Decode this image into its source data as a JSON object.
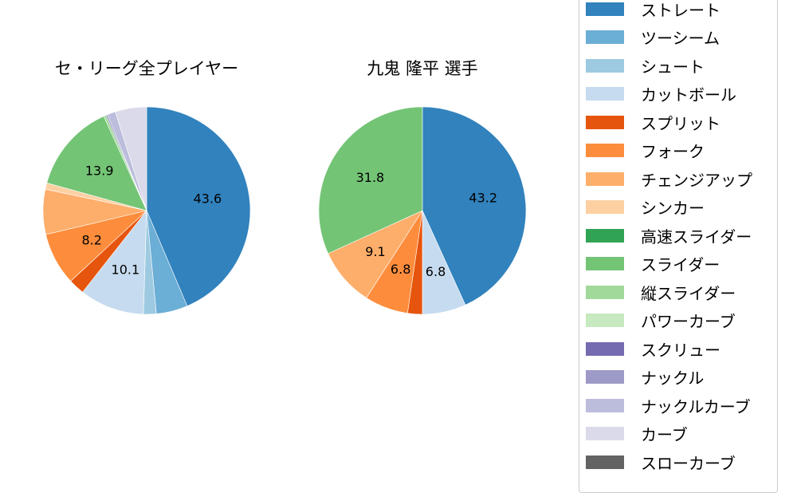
{
  "chart_data": [
    {
      "type": "pie",
      "title": "セ・リーグ全プレイヤー",
      "start_angle": 90,
      "direction": "clockwise",
      "slices": [
        {
          "label": "ストレート",
          "value": 43.6,
          "color": "#3182bd",
          "show_label": true
        },
        {
          "label": "ツーシーム",
          "value": 4.9,
          "color": "#6baed6",
          "show_label": false
        },
        {
          "label": "シュート",
          "value": 2.0,
          "color": "#9ecae1",
          "show_label": false
        },
        {
          "label": "カットボール",
          "value": 10.1,
          "color": "#c6dbef",
          "show_label": true
        },
        {
          "label": "スプリット",
          "value": 2.5,
          "color": "#e6550d",
          "show_label": false
        },
        {
          "label": "フォーク",
          "value": 8.2,
          "color": "#fd8d3c",
          "show_label": true
        },
        {
          "label": "チェンジアップ",
          "value": 7.0,
          "color": "#fdae6b",
          "show_label": false
        },
        {
          "label": "シンカー",
          "value": 1.0,
          "color": "#fdd0a2",
          "show_label": false
        },
        {
          "label": "スライダー",
          "value": 13.9,
          "color": "#74c476",
          "show_label": true
        },
        {
          "label": "縦スライダー",
          "value": 0.4,
          "color": "#a1d99b",
          "show_label": false
        },
        {
          "label": "スクリュー",
          "value": 0.2,
          "color": "#756bb1",
          "show_label": false
        },
        {
          "label": "ナックルカーブ",
          "value": 1.3,
          "color": "#bcbddc",
          "show_label": false
        },
        {
          "label": "カーブ",
          "value": 4.9,
          "color": "#dadaeb",
          "show_label": false
        }
      ]
    },
    {
      "type": "pie",
      "title": "九鬼 隆平  選手",
      "start_angle": 90,
      "direction": "clockwise",
      "slices": [
        {
          "label": "ストレート",
          "value": 43.2,
          "color": "#3182bd",
          "show_label": true
        },
        {
          "label": "カットボール",
          "value": 6.8,
          "color": "#c6dbef",
          "show_label": true
        },
        {
          "label": "スプリット",
          "value": 2.3,
          "color": "#e6550d",
          "show_label": false
        },
        {
          "label": "フォーク",
          "value": 6.8,
          "color": "#fd8d3c",
          "show_label": true
        },
        {
          "label": "チェンジアップ",
          "value": 9.1,
          "color": "#fdae6b",
          "show_label": true
        },
        {
          "label": "スライダー",
          "value": 31.8,
          "color": "#74c476",
          "show_label": true
        }
      ]
    }
  ],
  "titles": {
    "left": "セ・リーグ全プレイヤー",
    "right": "九鬼 隆平  選手"
  },
  "legend": {
    "items": [
      {
        "label": "ストレート",
        "color": "#3182bd"
      },
      {
        "label": "ツーシーム",
        "color": "#6baed6"
      },
      {
        "label": "シュート",
        "color": "#9ecae1"
      },
      {
        "label": "カットボール",
        "color": "#c6dbef"
      },
      {
        "label": "スプリット",
        "color": "#e6550d"
      },
      {
        "label": "フォーク",
        "color": "#fd8d3c"
      },
      {
        "label": "チェンジアップ",
        "color": "#fdae6b"
      },
      {
        "label": "シンカー",
        "color": "#fdd0a2"
      },
      {
        "label": "高速スライダー",
        "color": "#31a354"
      },
      {
        "label": "スライダー",
        "color": "#74c476"
      },
      {
        "label": "縦スライダー",
        "color": "#a1d99b"
      },
      {
        "label": "パワーカーブ",
        "color": "#c7e9c0"
      },
      {
        "label": "スクリュー",
        "color": "#756bb1"
      },
      {
        "label": "ナックル",
        "color": "#9e9ac8"
      },
      {
        "label": "ナックルカーブ",
        "color": "#bcbddc"
      },
      {
        "label": "カーブ",
        "color": "#dadaeb"
      },
      {
        "label": "スローカーブ",
        "color": "#636363"
      }
    ]
  }
}
